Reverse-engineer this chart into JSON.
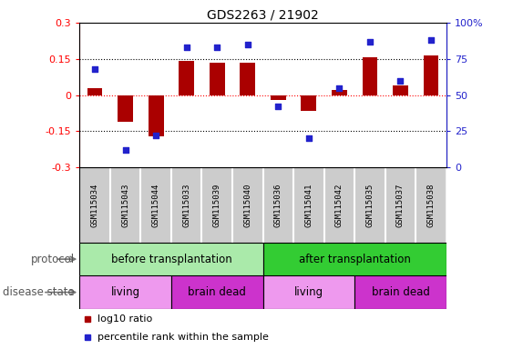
{
  "title": "GDS2263 / 21902",
  "samples": [
    "GSM115034",
    "GSM115043",
    "GSM115044",
    "GSM115033",
    "GSM115039",
    "GSM115040",
    "GSM115036",
    "GSM115041",
    "GSM115042",
    "GSM115035",
    "GSM115037",
    "GSM115038"
  ],
  "log10_ratio": [
    0.03,
    -0.11,
    -0.17,
    0.14,
    0.135,
    0.135,
    -0.02,
    -0.065,
    0.02,
    0.155,
    0.04,
    0.165
  ],
  "percentile_rank": [
    68,
    12,
    22,
    83,
    83,
    85,
    42,
    20,
    55,
    87,
    60,
    88
  ],
  "ylim_left": [
    -0.3,
    0.3
  ],
  "ylim_right": [
    0,
    100
  ],
  "yticks_left": [
    -0.3,
    -0.15,
    0,
    0.15,
    0.3
  ],
  "yticks_right": [
    0,
    25,
    50,
    75,
    100
  ],
  "hlines_dotted": [
    -0.15,
    0.15
  ],
  "hline_red": 0.0,
  "bar_color": "#aa0000",
  "dot_color": "#2222cc",
  "protocol_groups": [
    {
      "label": "before transplantation",
      "start": 0,
      "end": 6,
      "color": "#aaeaaa"
    },
    {
      "label": "after transplantation",
      "start": 6,
      "end": 12,
      "color": "#33cc33"
    }
  ],
  "disease_groups": [
    {
      "label": "living",
      "start": 0,
      "end": 3,
      "color": "#ee99ee"
    },
    {
      "label": "brain dead",
      "start": 3,
      "end": 6,
      "color": "#cc33cc"
    },
    {
      "label": "living",
      "start": 6,
      "end": 9,
      "color": "#ee99ee"
    },
    {
      "label": "brain dead",
      "start": 9,
      "end": 12,
      "color": "#cc33cc"
    }
  ],
  "legend_labels": [
    "log10 ratio",
    "percentile rank within the sample"
  ],
  "legend_colors": [
    "#aa0000",
    "#2222cc"
  ],
  "protocol_label": "protocol",
  "disease_label": "disease state",
  "sample_bg_color": "#cccccc",
  "title_fontsize": 10,
  "axis_fontsize": 8,
  "label_fontsize": 8.5
}
